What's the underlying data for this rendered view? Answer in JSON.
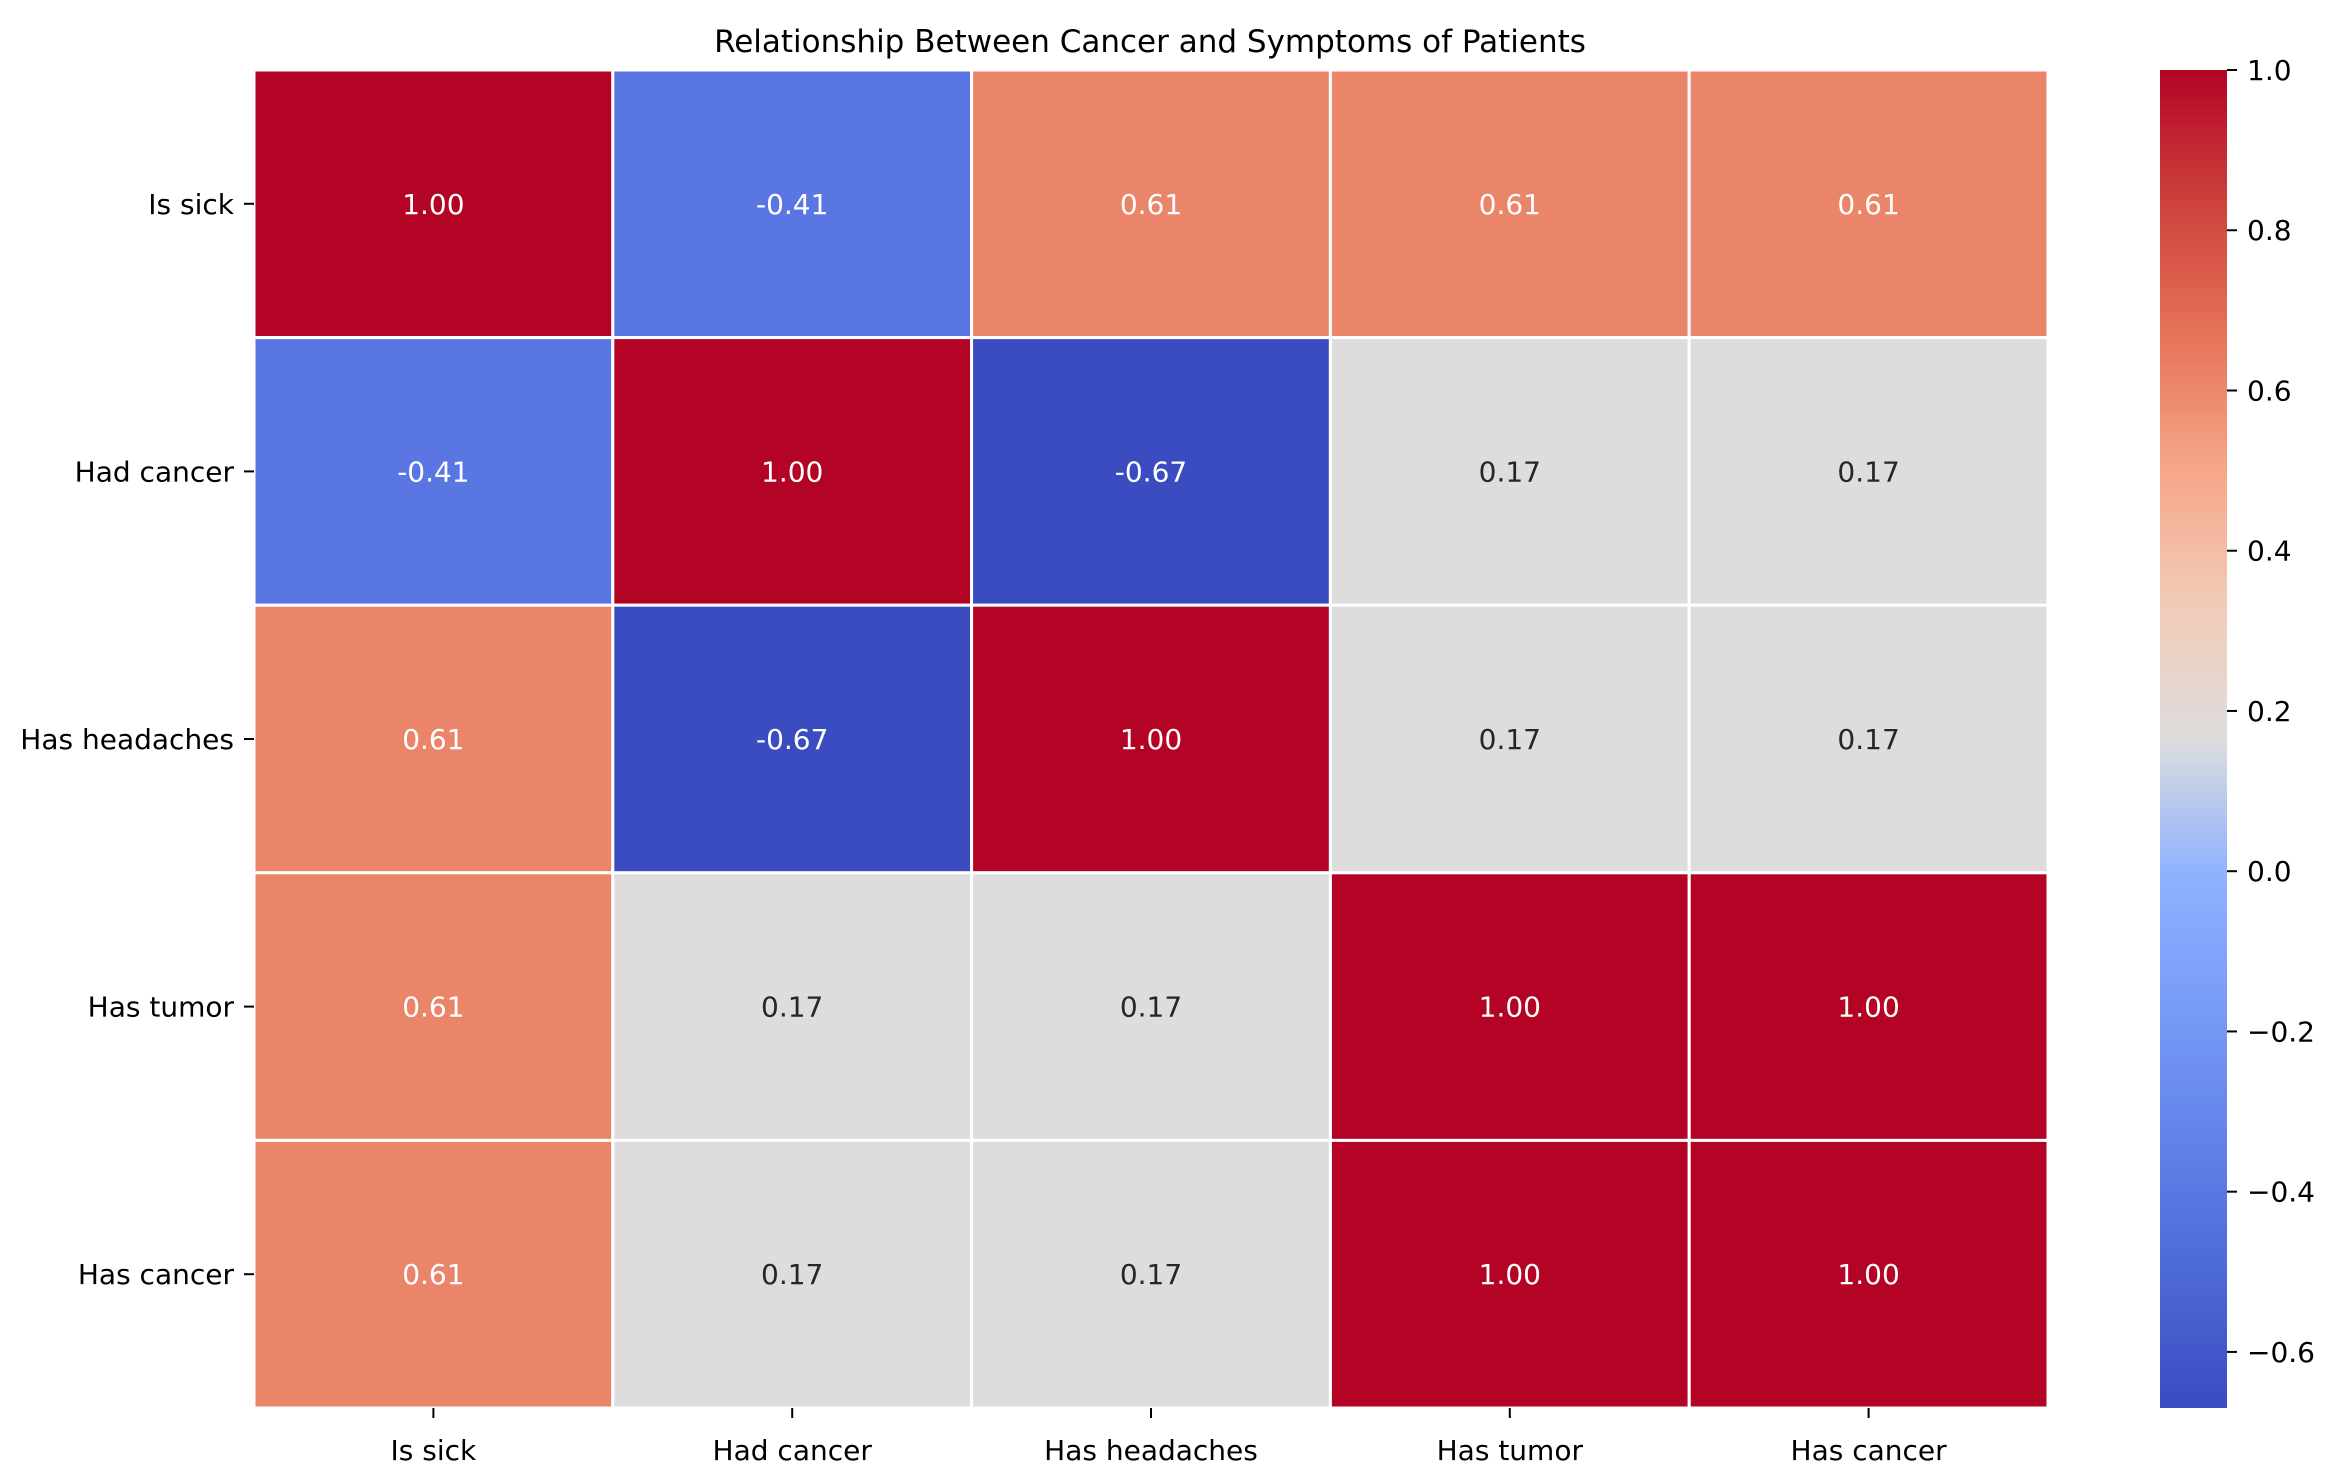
{
  "chart_data": {
    "type": "heatmap",
    "title": "Relationship Between Cancer and Symptoms of Patients",
    "xlabel": "",
    "ylabel": "",
    "x_categories": [
      "Is sick",
      "Had cancer",
      "Has headaches",
      "Has tumor",
      "Has cancer"
    ],
    "y_categories": [
      "Is sick",
      "Had cancer",
      "Has headaches",
      "Has tumor",
      "Has cancer"
    ],
    "values": [
      [
        1.0,
        -0.41,
        0.61,
        0.61,
        0.61
      ],
      [
        -0.41,
        1.0,
        -0.67,
        0.17,
        0.17
      ],
      [
        0.61,
        -0.67,
        1.0,
        0.17,
        0.17
      ],
      [
        0.61,
        0.17,
        0.17,
        1.0,
        1.0
      ],
      [
        0.61,
        0.17,
        0.17,
        1.0,
        1.0
      ]
    ],
    "value_format": "0.00",
    "colormap": "coolwarm",
    "vmin": -0.67,
    "vmax": 1.0,
    "colorbar": {
      "ticks": [
        1.0,
        0.8,
        0.6,
        0.4,
        0.2,
        0.0,
        -0.2,
        -0.4,
        -0.6
      ],
      "tick_labels": [
        "1.0",
        "0.8",
        "0.6",
        "0.4",
        "0.2",
        "0.0",
        "−0.2",
        "−0.4",
        "−0.6"
      ]
    },
    "grid": true,
    "cell_separator_color": "#ffffff"
  }
}
